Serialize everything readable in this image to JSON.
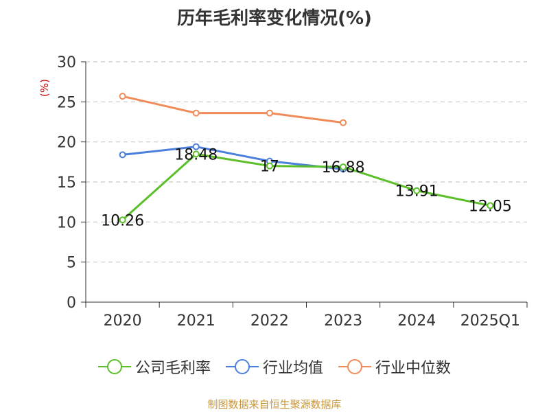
{
  "title": "历年毛利率变化情况(%)",
  "source": "制图数据来自恒生聚源数据库",
  "colors": {
    "company": "#5cbf2a",
    "industry_avg": "#4a7fdc",
    "industry_median": "#f08c5a"
  },
  "chart_data": {
    "type": "line",
    "title": "历年毛利率变化情况(%)",
    "ylabel": "(%)",
    "categories": [
      "2020",
      "2021",
      "2022",
      "2023",
      "2024",
      "2025Q1"
    ],
    "ylim": [
      0,
      30
    ],
    "yticks": [
      0,
      5,
      10,
      15,
      20,
      25,
      30
    ],
    "grid": true,
    "legend_position": "bottom",
    "series": [
      {
        "name": "公司毛利率",
        "color": "#5cbf2a",
        "values": [
          10.26,
          18.48,
          17,
          16.88,
          13.91,
          12.05
        ],
        "labels": [
          "10.26",
          "18.48",
          "17",
          "16.88",
          "13.91",
          "12.05"
        ]
      },
      {
        "name": "行业均值",
        "color": "#4a7fdc",
        "values": [
          18.4,
          19.4,
          17.6,
          16.6,
          null,
          null
        ]
      },
      {
        "name": "行业中位数",
        "color": "#f08c5a",
        "values": [
          25.7,
          23.6,
          23.6,
          22.4,
          null,
          null
        ]
      }
    ]
  }
}
